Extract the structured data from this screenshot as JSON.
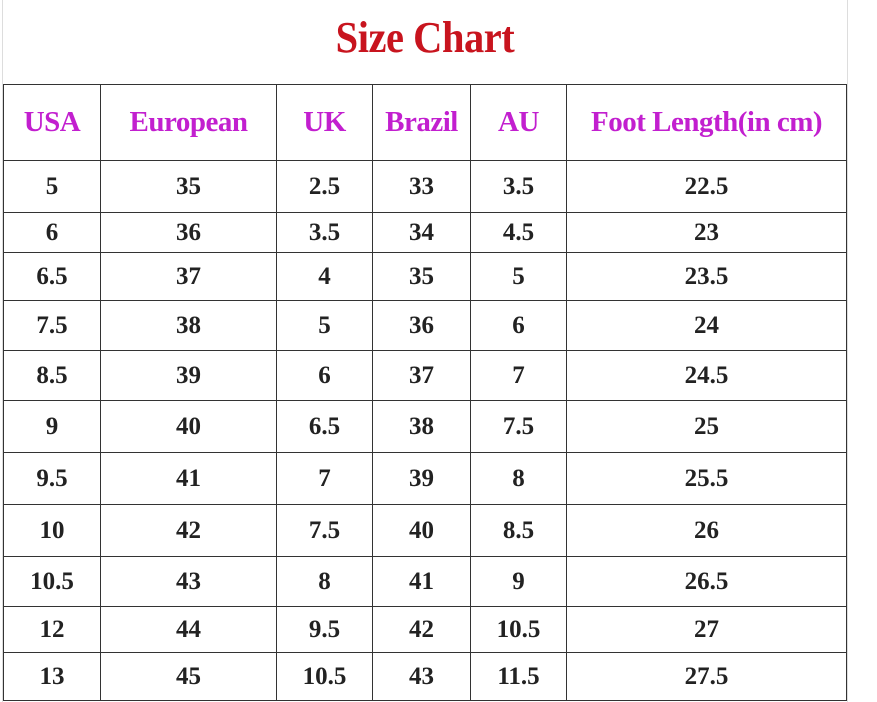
{
  "title": "Size Chart",
  "colors": {
    "title": "#c8141e",
    "header": "#c21fcf",
    "text": "#222222",
    "border": "#333333"
  },
  "columns": [
    "USA",
    "European",
    "UK",
    "Brazil",
    "AU",
    "Foot Length(in cm)"
  ],
  "rows": [
    [
      "5",
      "35",
      "2.5",
      "33",
      "3.5",
      "22.5"
    ],
    [
      "6",
      "36",
      "3.5",
      "34",
      "4.5",
      "23"
    ],
    [
      "6.5",
      "37",
      "4",
      "35",
      "5",
      "23.5"
    ],
    [
      "7.5",
      "38",
      "5",
      "36",
      "6",
      "24"
    ],
    [
      "8.5",
      "39",
      "6",
      "37",
      "7",
      "24.5"
    ],
    [
      "9",
      "40",
      "6.5",
      "38",
      "7.5",
      "25"
    ],
    [
      "9.5",
      "41",
      "7",
      "39",
      "8",
      "25.5"
    ],
    [
      "10",
      "42",
      "7.5",
      "40",
      "8.5",
      "26"
    ],
    [
      "10.5",
      "43",
      "8",
      "41",
      "9",
      "26.5"
    ],
    [
      "12",
      "44",
      "9.5",
      "42",
      "10.5",
      "27"
    ],
    [
      "13",
      "45",
      "10.5",
      "43",
      "11.5",
      "27.5"
    ]
  ]
}
